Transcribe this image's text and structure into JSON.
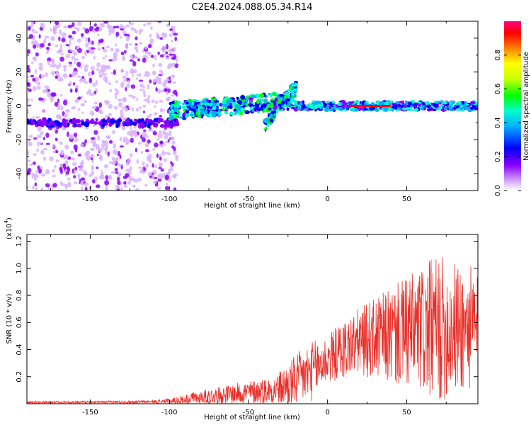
{
  "title": "C2E4.2024.088.05.34.R14",
  "chart_data": [
    {
      "type": "heatmap",
      "xlabel": "Height of straight line (km)",
      "ylabel": "Frequency (Hz)",
      "xlim": [
        -190,
        95
      ],
      "ylim": [
        -50,
        50
      ],
      "xticks": [
        "-150",
        "-100",
        "-50",
        "0",
        "50"
      ],
      "yticks": [
        "-40",
        "-20",
        "0",
        "20",
        "40"
      ],
      "colorbar": {
        "label": "Normalized spectral amplitude",
        "range": [
          0,
          1
        ],
        "ticks": [
          "0.0",
          "0.2",
          "0.4",
          "0.6",
          "0.8"
        ],
        "colormap": [
          "#ffffff",
          "#d9b3ff",
          "#8a00ff",
          "#0000ff",
          "#00b0ff",
          "#00ffcc",
          "#00ff00",
          "#ccff00",
          "#ffff00",
          "#ff8000",
          "#ff0000",
          "#ff0080"
        ]
      },
      "features": {
        "noise_region_x": [
          -190,
          -95
        ],
        "main_tone_freq": -10,
        "center_tone_freq": 0
      },
      "grid": false
    },
    {
      "type": "line",
      "xlabel": "Height of straight line (km)",
      "ylabel": "SNR (10 * v/v)",
      "exponent_label": "(x10",
      "exponent_sup": "4",
      "exponent_close": ")",
      "xlim": [
        -190,
        95
      ],
      "ylim": [
        0,
        1.25
      ],
      "xticks": [
        "-150",
        "-100",
        "-50",
        "0",
        "50"
      ],
      "yticks": [
        "0.2",
        "0.4",
        "0.6",
        "0.8",
        "1.0",
        "1.2"
      ],
      "series": [
        {
          "color": "#e8302a",
          "envelope": {
            "x": [
              -190,
              -150,
              -110,
              -95,
              -85,
              -70,
              -55,
              -45,
              -35,
              -28,
              -20,
              -10,
              0,
              10,
              20,
              30,
              40,
              50,
              60,
              70,
              80,
              95
            ],
            "base": [
              0.01,
              0.01,
              0.015,
              0.02,
              0.04,
              0.06,
              0.08,
              0.09,
              0.1,
              0.12,
              0.17,
              0.24,
              0.33,
              0.4,
              0.46,
              0.48,
              0.5,
              0.52,
              0.54,
              0.55,
              0.56,
              0.55
            ],
            "amplitude": [
              0.01,
              0.01,
              0.01,
              0.03,
              0.05,
              0.06,
              0.08,
              0.09,
              0.1,
              0.14,
              0.2,
              0.22,
              0.18,
              0.22,
              0.25,
              0.3,
              0.36,
              0.42,
              0.48,
              0.55,
              0.5,
              0.45
            ]
          }
        }
      ],
      "grid": false
    }
  ]
}
